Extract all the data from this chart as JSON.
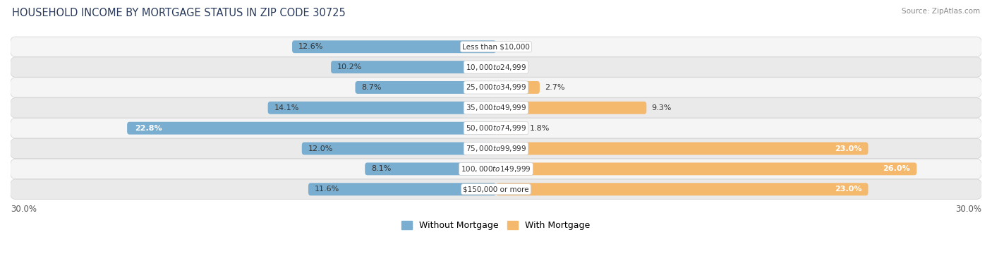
{
  "title": "HOUSEHOLD INCOME BY MORTGAGE STATUS IN ZIP CODE 30725",
  "source": "Source: ZipAtlas.com",
  "categories": [
    "Less than $10,000",
    "$10,000 to $24,999",
    "$25,000 to $34,999",
    "$35,000 to $49,999",
    "$50,000 to $74,999",
    "$75,000 to $99,999",
    "$100,000 to $149,999",
    "$150,000 or more"
  ],
  "without_mortgage": [
    12.6,
    10.2,
    8.7,
    14.1,
    22.8,
    12.0,
    8.1,
    11.6
  ],
  "with_mortgage": [
    0.0,
    0.0,
    2.7,
    9.3,
    1.8,
    23.0,
    26.0,
    23.0
  ],
  "color_without": "#7aaed0",
  "color_with": "#f5b96e",
  "color_without_dark": "#5a8fb5",
  "xlim": 30.0,
  "legend_labels": [
    "Without Mortgage",
    "With Mortgage"
  ],
  "title_fontsize": 10.5,
  "bar_height": 0.62,
  "row_bg_colors": [
    "#f5f5f5",
    "#eaeaea",
    "#f5f5f5",
    "#eaeaea",
    "#f5f5f5",
    "#eaeaea",
    "#f5f5f5",
    "#eaeaea"
  ],
  "row_border_color": "#d0d0d0",
  "label_fontsize": 8.0,
  "cat_label_fontsize": 7.5,
  "axis_label_fontsize": 8.5
}
